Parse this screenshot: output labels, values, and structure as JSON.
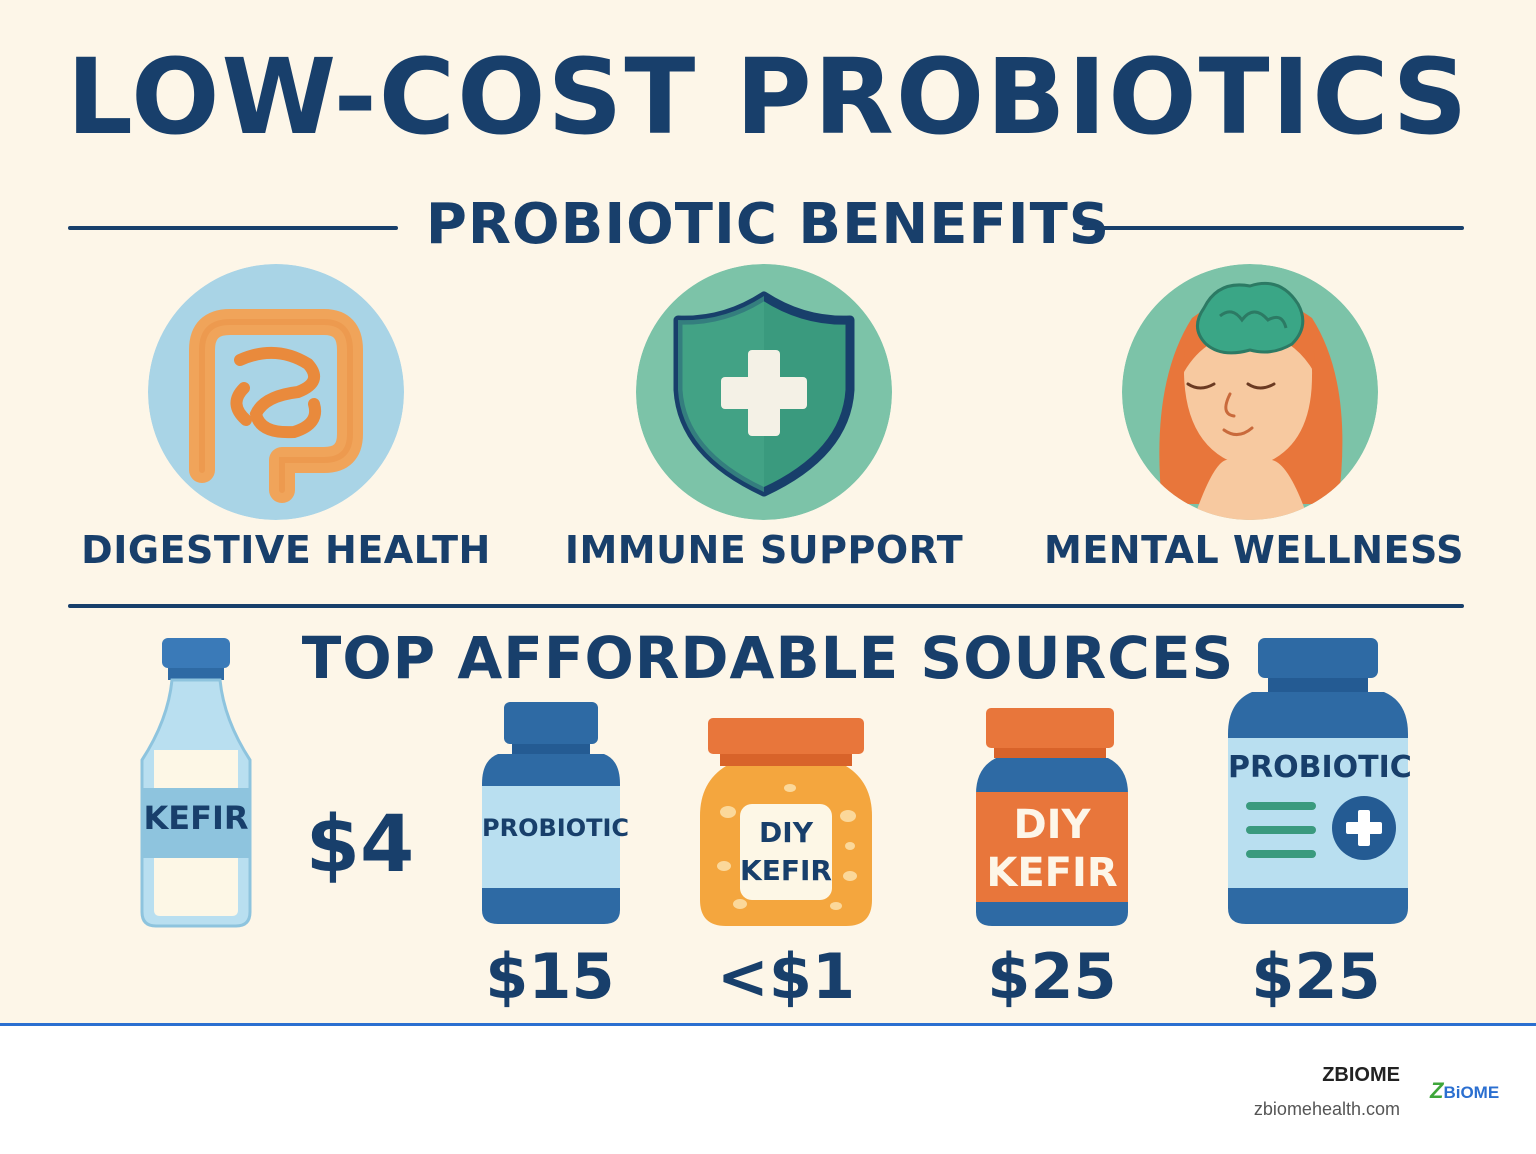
{
  "title": "LOW-COST PROBIOTICS",
  "benefits_heading": "PROBIOTIC BENEFITS",
  "benefits": [
    {
      "label": "DIGESTIVE HEALTH",
      "icon": "intestine-icon"
    },
    {
      "label": "IMMUNE SUPPORT",
      "icon": "shield-plus-icon"
    },
    {
      "label": "MENTAL WELLNESS",
      "icon": "woman-brain-icon"
    }
  ],
  "sources_heading": "TOP AFFORDABLE SOURCES",
  "sources": [
    {
      "label": "KEFIR",
      "price": "$4",
      "icon": "milk-bottle-icon"
    },
    {
      "label": "PROBIOTIC",
      "price": "$15",
      "icon": "supplement-bottle-icon"
    },
    {
      "label_line1": "DIY",
      "label_line2": "KEFIR",
      "price": "<$1",
      "icon": "jar-icon"
    },
    {
      "label_line1": "DIY",
      "label_line2": "KEFIR",
      "price": "$25",
      "icon": "jar-icon"
    },
    {
      "label": "PROBIOTIC",
      "price": "$25",
      "icon": "supplement-bottle-icon"
    }
  ],
  "footer": {
    "brand": "ZBIOME",
    "url": "zbiomehealth.com",
    "logo_text_1": "Z",
    "logo_text_2": "BiOME"
  },
  "colors": {
    "navy": "#183f6b",
    "background": "#fdf6e8",
    "light_blue": "#a9d4e6",
    "green": "#7cc3a8",
    "orange": "#e8763b",
    "footer_accent": "#2b6fd0"
  }
}
